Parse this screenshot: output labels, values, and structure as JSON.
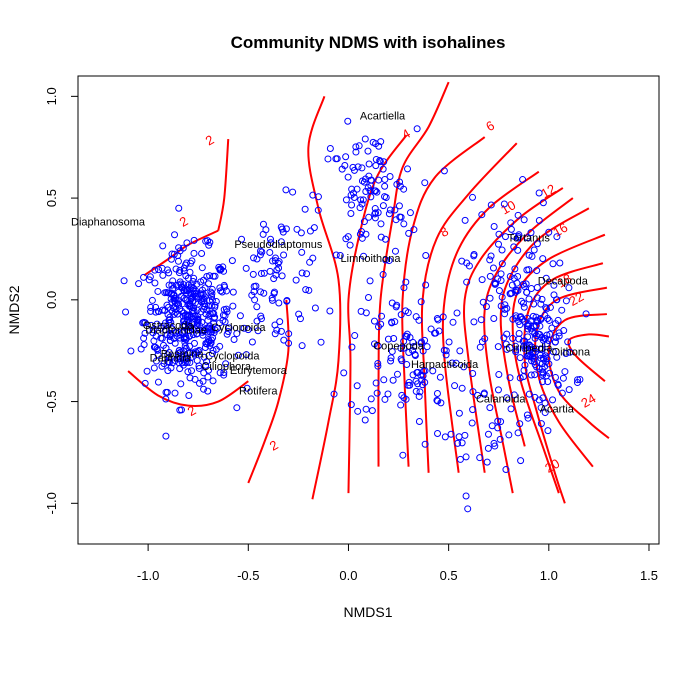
{
  "chart_data": {
    "type": "scatter",
    "title": "Community NDMS with isohalines",
    "xlabel": "NMDS1",
    "ylabel": "NMDS2",
    "xlim": [
      -1.35,
      1.55
    ],
    "ylim": [
      -1.2,
      1.1
    ],
    "x_ticks": [
      "-1.0",
      "-0.5",
      "0.0",
      "0.5",
      "1.0",
      "1.5"
    ],
    "y_ticks": [
      "-1.0",
      "-0.5",
      "0.0",
      "0.5",
      "1.0"
    ],
    "point_color": "#0000ff",
    "contour_color": "#ff0000",
    "site_clusters": [
      {
        "center": [
          -0.8,
          -0.1
        ],
        "spread": [
          0.18,
          0.28
        ],
        "count": 420
      },
      {
        "center": [
          -0.35,
          0.1
        ],
        "spread": [
          0.2,
          0.3
        ],
        "count": 90
      },
      {
        "center": [
          0.1,
          0.5
        ],
        "spread": [
          0.2,
          0.28
        ],
        "count": 110
      },
      {
        "center": [
          0.3,
          -0.25
        ],
        "spread": [
          0.25,
          0.3
        ],
        "count": 120
      },
      {
        "center": [
          0.8,
          0.1
        ],
        "spread": [
          0.18,
          0.35
        ],
        "count": 110
      },
      {
        "center": [
          0.95,
          -0.25
        ],
        "spread": [
          0.15,
          0.25
        ],
        "count": 150
      },
      {
        "center": [
          0.65,
          -0.65
        ],
        "spread": [
          0.2,
          0.2
        ],
        "count": 40
      }
    ],
    "species": [
      {
        "name": "Acartiella",
        "x": 0.17,
        "y": 0.9
      },
      {
        "name": "Diaphanosoma",
        "x": -1.2,
        "y": 0.38
      },
      {
        "name": "Pseudodiaptomus",
        "x": -0.35,
        "y": 0.27
      },
      {
        "name": "Limnoithona",
        "x": 0.11,
        "y": 0.2
      },
      {
        "name": "Tortanus",
        "x": 0.9,
        "y": 0.3
      },
      {
        "name": "Decapoda",
        "x": 1.07,
        "y": 0.09
      },
      {
        "name": "Ostracoda",
        "x": -0.9,
        "y": -0.13
      },
      {
        "name": "Diaptomidae",
        "x": -0.86,
        "y": -0.15
      },
      {
        "name": "Daphnia",
        "x": -0.89,
        "y": -0.29
      },
      {
        "name": "Bosmina",
        "x": -0.83,
        "y": -0.27
      },
      {
        "name": "Cyclopoida",
        "x": -0.58,
        "y": -0.28
      },
      {
        "name": "Eurytemora",
        "x": -0.45,
        "y": -0.35
      },
      {
        "name": "Ciliophora",
        "x": -0.61,
        "y": -0.33
      },
      {
        "name": "Rotifera",
        "x": -0.45,
        "y": -0.45
      },
      {
        "name": "Cyclopoida",
        "x": -0.55,
        "y": -0.14
      },
      {
        "name": "Copepoda",
        "x": 0.25,
        "y": -0.23
      },
      {
        "name": "Harpacticoida",
        "x": 0.48,
        "y": -0.32
      },
      {
        "name": "Cirripedia",
        "x": 0.9,
        "y": -0.24
      },
      {
        "name": "Oithona",
        "x": 1.11,
        "y": -0.26
      },
      {
        "name": "Calanoida",
        "x": 0.76,
        "y": -0.49
      },
      {
        "name": "Acartia",
        "x": 1.04,
        "y": -0.54
      }
    ],
    "isohalines": [
      {
        "level": "2",
        "label_pos": [
          -0.82,
          0.38
        ],
        "points": [
          [
            -0.65,
            0.34
          ],
          [
            -0.8,
            0.27
          ],
          [
            -0.9,
            0.2
          ],
          [
            -1.02,
            0.12
          ]
        ]
      },
      {
        "level": "2",
        "label_pos": [
          -0.78,
          -0.55
        ],
        "points": [
          [
            -0.5,
            -0.4
          ],
          [
            -0.65,
            -0.5
          ],
          [
            -0.8,
            -0.52
          ],
          [
            -0.95,
            -0.47
          ],
          [
            -1.1,
            -0.35
          ]
        ]
      },
      {
        "level": "2",
        "label_pos": [
          -0.37,
          -0.72
        ],
        "points": [
          [
            -0.31,
            0.0
          ],
          [
            -0.3,
            -0.25
          ],
          [
            -0.35,
            -0.5
          ],
          [
            -0.42,
            -0.7
          ],
          [
            -0.5,
            -0.9
          ]
        ]
      },
      {
        "level": "2",
        "label_pos": [
          -0.69,
          0.78
        ],
        "points": [
          [
            -0.6,
            0.79
          ],
          [
            -0.62,
            0.5
          ],
          [
            -0.65,
            0.34
          ]
        ]
      },
      {
        "level": "4",
        "label_pos": [
          0.29,
          0.81
        ],
        "points": [
          [
            -0.12,
            1.0
          ],
          [
            -0.2,
            0.75
          ],
          [
            -0.15,
            0.45
          ],
          [
            -0.05,
            0.1
          ],
          [
            -0.05,
            -0.3
          ],
          [
            -0.1,
            -0.6
          ],
          [
            -0.18,
            -0.98
          ]
        ]
      },
      {
        "level": "4",
        "label_pos": [
          0.29,
          0.81
        ],
        "points": [
          [
            0.29,
            0.81
          ],
          [
            0.14,
            0.6
          ],
          [
            0.05,
            0.3
          ],
          [
            0.0,
            0.0
          ],
          [
            0.01,
            -0.3
          ],
          [
            0.0,
            -0.95
          ]
        ]
      },
      {
        "level": "6",
        "label_pos": [
          0.71,
          0.85
        ],
        "points": [
          [
            0.5,
            1.07
          ],
          [
            0.4,
            0.85
          ],
          [
            0.27,
            0.65
          ],
          [
            0.22,
            0.4
          ],
          [
            0.16,
            0.0
          ],
          [
            0.15,
            -0.4
          ],
          [
            0.15,
            -0.82
          ]
        ]
      },
      {
        "level": "6",
        "label_pos": [
          0.71,
          0.85
        ],
        "points": [
          [
            0.68,
            0.8
          ],
          [
            0.43,
            0.6
          ],
          [
            0.32,
            0.35
          ],
          [
            0.27,
            0.0
          ],
          [
            0.28,
            -0.4
          ],
          [
            0.3,
            -0.82
          ]
        ]
      },
      {
        "level": "8",
        "label_pos": [
          0.48,
          0.33
        ],
        "points": [
          [
            0.84,
            0.77
          ],
          [
            0.6,
            0.52
          ],
          [
            0.44,
            0.3
          ],
          [
            0.37,
            0.0
          ],
          [
            0.38,
            -0.4
          ],
          [
            0.4,
            -0.85
          ]
        ]
      },
      {
        "level": "10",
        "label_pos": [
          0.8,
          0.45
        ],
        "points": [
          [
            0.95,
            0.63
          ],
          [
            0.7,
            0.45
          ],
          [
            0.55,
            0.25
          ],
          [
            0.48,
            0.0
          ],
          [
            0.48,
            -0.3
          ],
          [
            0.55,
            -0.85
          ]
        ]
      },
      {
        "level": "12",
        "label_pos": [
          1.0,
          0.53
        ],
        "points": [
          [
            1.07,
            0.55
          ],
          [
            0.85,
            0.4
          ],
          [
            0.66,
            0.2
          ],
          [
            0.58,
            0.0
          ],
          [
            0.6,
            -0.3
          ],
          [
            0.68,
            -0.85
          ]
        ]
      },
      {
        "level": "12",
        "label_pos": [
          1.0,
          0.53
        ],
        "points": [
          [
            1.12,
            0.5
          ],
          [
            0.9,
            0.33
          ],
          [
            0.75,
            0.15
          ],
          [
            0.68,
            -0.05
          ],
          [
            0.7,
            -0.35
          ],
          [
            0.77,
            -0.7
          ],
          [
            0.82,
            -0.95
          ]
        ]
      },
      {
        "level": "16",
        "label_pos": [
          1.06,
          0.34
        ],
        "points": [
          [
            1.2,
            0.45
          ],
          [
            0.95,
            0.3
          ],
          [
            0.8,
            0.1
          ],
          [
            0.76,
            -0.1
          ],
          [
            0.8,
            -0.4
          ],
          [
            0.88,
            -0.72
          ]
        ]
      },
      {
        "level": "18",
        "label_pos": [
          1.08,
          0.09
        ],
        "points": [
          [
            1.28,
            0.32
          ],
          [
            1.0,
            0.2
          ],
          [
            0.85,
            0.05
          ],
          [
            0.82,
            -0.15
          ],
          [
            0.86,
            -0.4
          ],
          [
            0.98,
            -0.75
          ],
          [
            1.05,
            -0.95
          ]
        ]
      },
      {
        "level": "20",
        "label_pos": [
          1.02,
          -0.82
        ],
        "points": [
          [
            1.27,
            0.18
          ],
          [
            1.02,
            0.1
          ],
          [
            0.9,
            -0.05
          ],
          [
            0.88,
            -0.3
          ],
          [
            0.94,
            -0.55
          ],
          [
            1.03,
            -0.85
          ],
          [
            1.08,
            -1.0
          ]
        ]
      },
      {
        "level": "22",
        "label_pos": [
          1.14,
          0.0
        ],
        "points": [
          [
            1.29,
            0.06
          ],
          [
            1.04,
            0.0
          ],
          [
            0.94,
            -0.15
          ],
          [
            0.95,
            -0.38
          ],
          [
            1.05,
            -0.6
          ],
          [
            1.22,
            -0.82
          ]
        ]
      },
      {
        "level": "24",
        "label_pos": [
          1.2,
          -0.5
        ],
        "points": [
          [
            1.29,
            -0.07
          ],
          [
            1.08,
            -0.1
          ],
          [
            1.0,
            -0.25
          ],
          [
            1.05,
            -0.45
          ],
          [
            1.2,
            -0.6
          ],
          [
            1.3,
            -0.68
          ]
        ]
      },
      {
        "level": "24",
        "label_pos": [
          1.2,
          -0.5
        ],
        "points": [
          [
            1.28,
            -0.4
          ],
          [
            1.14,
            -0.28
          ],
          [
            1.1,
            -0.2
          ],
          [
            1.2,
            -0.17
          ],
          [
            1.3,
            -0.18
          ]
        ]
      }
    ]
  }
}
